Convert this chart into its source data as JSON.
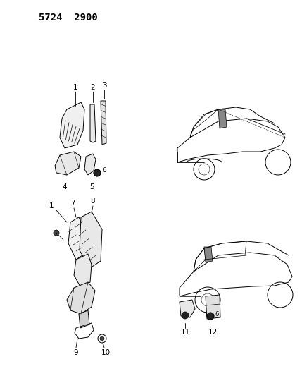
{
  "title": "5724  2900",
  "bg_color": "#ffffff",
  "line_color": "#000000",
  "figsize": [
    4.29,
    5.33
  ],
  "dpi": 100
}
